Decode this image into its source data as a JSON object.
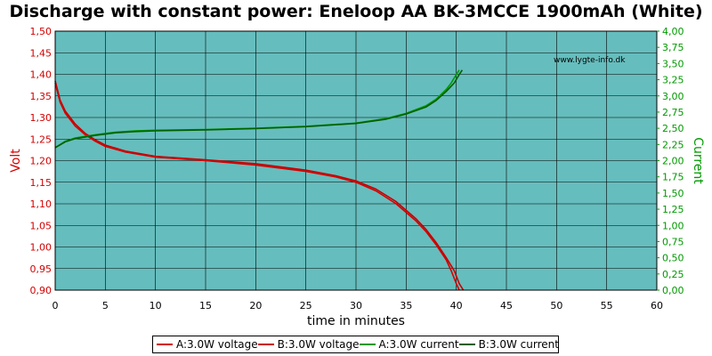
{
  "chart_data": {
    "type": "line",
    "title": "Discharge with constant power: Eneloop AA BK-3MCCE 1900mAh (White)",
    "xlabel": "time in minutes",
    "ylabel": "Volt",
    "y2label": "Current",
    "watermark": "www.lygte-info.dk",
    "xlim": [
      0,
      60
    ],
    "ylim": [
      0.9,
      1.5
    ],
    "y2lim": [
      0,
      4
    ],
    "xticks": [
      "0",
      "5",
      "10",
      "15",
      "20",
      "25",
      "30",
      "35",
      "40",
      "45",
      "50",
      "55",
      "60"
    ],
    "yticks": [
      "0,90",
      "0,95",
      "1,00",
      "1,05",
      "1,10",
      "1,15",
      "1,20",
      "1,25",
      "1,30",
      "1,35",
      "1,40",
      "1,45",
      "1,50"
    ],
    "y2ticks": [
      "0,00",
      "0,25",
      "0,50",
      "0,75",
      "1,00",
      "1,25",
      "1,50",
      "1,75",
      "2,00",
      "2,25",
      "2,50",
      "2,75",
      "3,00",
      "3,25",
      "3,50",
      "3,75",
      "4,00"
    ],
    "grid": true,
    "legend_position": "bottom",
    "plot_background": "#66bdbd",
    "series": [
      {
        "name": "A:3.0W voltage",
        "axis": "left",
        "color": "#d40000",
        "x": [
          0,
          0.5,
          1,
          2,
          3,
          4,
          5,
          7,
          10,
          15,
          20,
          25,
          28,
          30,
          32,
          34,
          36,
          37,
          38,
          39,
          39.5,
          40,
          40.3
        ],
        "y": [
          1.38,
          1.335,
          1.31,
          1.28,
          1.26,
          1.245,
          1.233,
          1.22,
          1.208,
          1.2,
          1.19,
          1.175,
          1.162,
          1.15,
          1.13,
          1.1,
          1.06,
          1.035,
          1.005,
          0.97,
          0.945,
          0.915,
          0.9
        ]
      },
      {
        "name": "B:3.0W voltage",
        "axis": "left",
        "color": "#c80000",
        "x": [
          0,
          0.5,
          1,
          2,
          3,
          4,
          5,
          7,
          10,
          15,
          20,
          25,
          28,
          30,
          32,
          34,
          36,
          37,
          38,
          39,
          39.8,
          40.3,
          40.7
        ],
        "y": [
          1.385,
          1.34,
          1.315,
          1.285,
          1.263,
          1.248,
          1.236,
          1.222,
          1.21,
          1.202,
          1.193,
          1.178,
          1.165,
          1.153,
          1.134,
          1.105,
          1.065,
          1.04,
          1.01,
          0.975,
          0.945,
          0.915,
          0.9
        ]
      },
      {
        "name": "A:3.0W current",
        "axis": "right",
        "color": "#009a00",
        "x": [
          0,
          1,
          2,
          4,
          6,
          8,
          10,
          15,
          20,
          25,
          30,
          33,
          35,
          37,
          38,
          39,
          39.5,
          40,
          40.3
        ],
        "y": [
          2.2,
          2.3,
          2.35,
          2.4,
          2.44,
          2.46,
          2.47,
          2.48,
          2.5,
          2.53,
          2.58,
          2.65,
          2.73,
          2.85,
          2.95,
          3.1,
          3.2,
          3.33,
          3.4
        ]
      },
      {
        "name": "B:3.0W current",
        "axis": "right",
        "color": "#005f00",
        "x": [
          0,
          1,
          2,
          4,
          6,
          8,
          10,
          15,
          20,
          25,
          30,
          33,
          35,
          37,
          38,
          39,
          39.8,
          40.3,
          40.6
        ],
        "y": [
          2.2,
          2.29,
          2.34,
          2.39,
          2.43,
          2.45,
          2.46,
          2.475,
          2.495,
          2.525,
          2.575,
          2.64,
          2.72,
          2.83,
          2.93,
          3.07,
          3.2,
          3.33,
          3.4
        ]
      }
    ]
  }
}
